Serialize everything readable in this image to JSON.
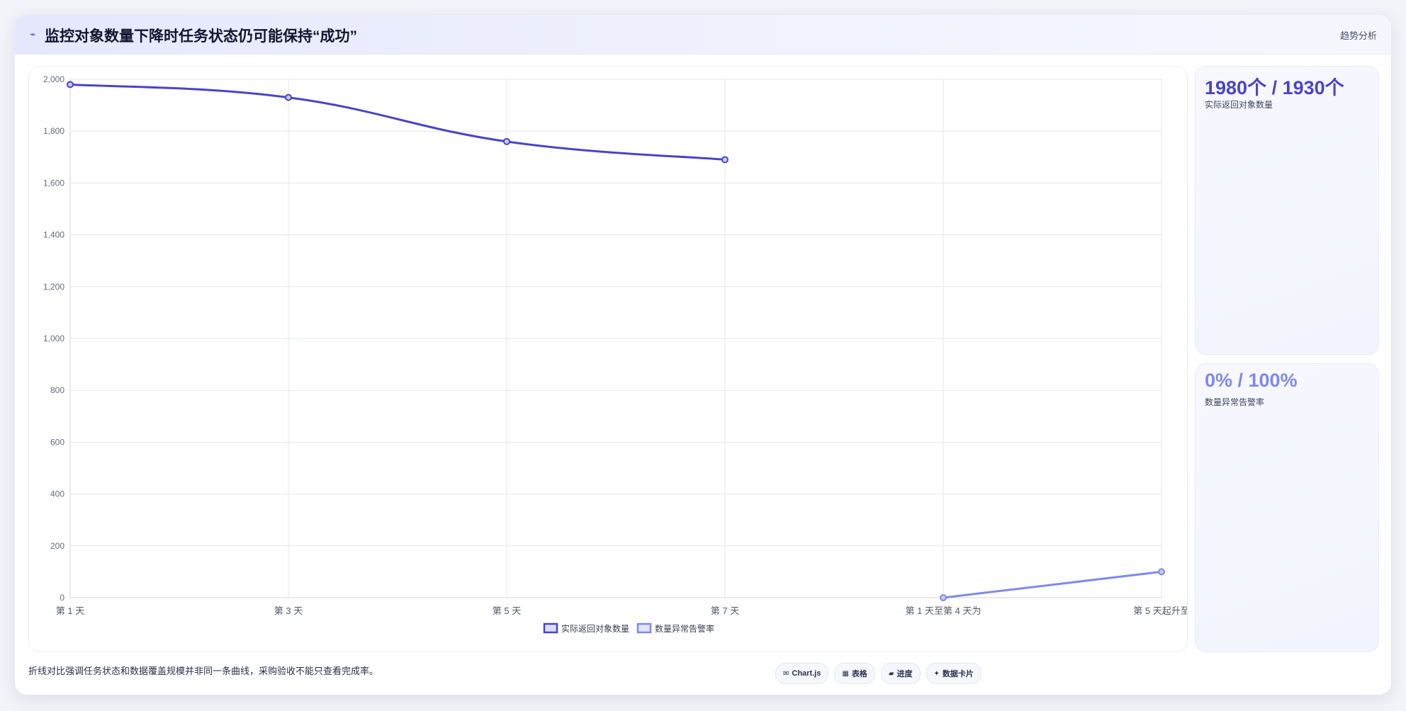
{
  "header": {
    "icon": "trend-line-icon",
    "title": "监控对象数量下降时任务状态仍可能保持“成功”",
    "tag": "趋势分析"
  },
  "chart_data": {
    "type": "line",
    "categories": [
      "第 1 天",
      "第 3 天",
      "第 5 天",
      "第 7 天",
      "第 1 天至第 4 天为",
      "第 5 天起升至"
    ],
    "series": [
      {
        "name": "实际返回对象数量",
        "color": "#4a43c9",
        "values": [
          1980,
          1930,
          1760,
          1690,
          null,
          null
        ]
      },
      {
        "name": "数量异常告警率",
        "color": "#8089ea",
        "values": [
          null,
          null,
          null,
          null,
          0,
          100
        ]
      }
    ],
    "ylim": [
      0,
      2000
    ],
    "yticks": [
      "2,000",
      "1,800",
      "1,600",
      "1,400",
      "1,200",
      "1,000",
      "800",
      "600",
      "400",
      "200",
      "0"
    ],
    "grid": true,
    "legend": "bottom-center"
  },
  "stats": [
    {
      "value": "1980个 / 1930个",
      "label": "实际返回对象数量",
      "color": "#4a43c9"
    },
    {
      "value": "0% / 100%",
      "label": "数量异常告警率",
      "color": "#8089ea"
    }
  ],
  "footer": {
    "note": "折线对比强调任务状态和数据覆盖规模并非同一条曲线，采购验收不能只查看完成率。",
    "pills": [
      {
        "icon": "chart-icon",
        "glyph": "✉",
        "label": "Chart.js"
      },
      {
        "icon": "table-icon",
        "glyph": "▦",
        "label": "表格"
      },
      {
        "icon": "progress-icon",
        "glyph": "▰",
        "label": "进度"
      },
      {
        "icon": "card-icon",
        "glyph": "✦",
        "label": "数据卡片"
      }
    ]
  }
}
